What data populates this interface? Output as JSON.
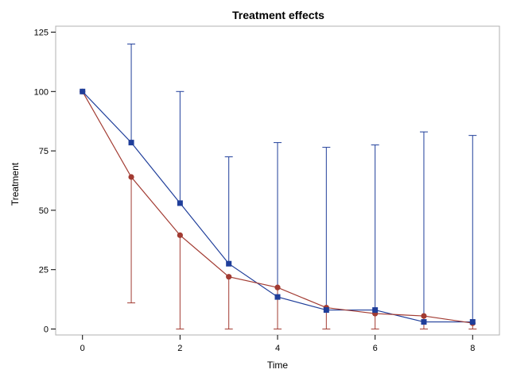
{
  "chart_data": {
    "type": "line",
    "title": "Treatment effects",
    "xlabel": "Time",
    "ylabel": "Treatment",
    "xlim": [
      -0.55,
      8.55
    ],
    "ylim": [
      -2.5,
      127.5
    ],
    "x_ticks": [
      0,
      2,
      4,
      6,
      8
    ],
    "y_ticks": [
      0,
      25,
      50,
      75,
      100,
      125
    ],
    "grid": false,
    "legend": "none",
    "x": [
      0,
      1,
      2,
      3,
      4,
      5,
      6,
      7,
      8
    ],
    "series": [
      {
        "marker": "square",
        "color": "#1f3e9a",
        "error_direction": "upper",
        "values": [
          100,
          78.5,
          53,
          27.5,
          13.5,
          8,
          8,
          3,
          3
        ],
        "error_upper": [
          100,
          120,
          100,
          72.5,
          78.5,
          76.5,
          77.5,
          83,
          81.5
        ]
      },
      {
        "marker": "circle",
        "color": "#a23b32",
        "error_direction": "lower",
        "values": [
          100,
          64,
          39.5,
          22,
          17.5,
          9,
          6.5,
          5.5,
          2.5
        ],
        "error_lower": [
          100,
          11,
          0,
          0,
          0,
          0,
          0,
          0,
          0
        ]
      }
    ]
  }
}
